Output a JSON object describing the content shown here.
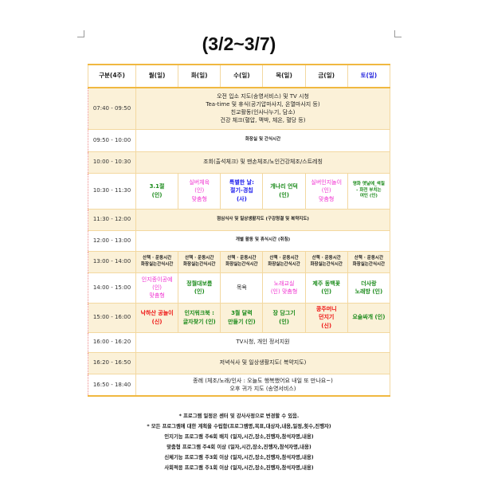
{
  "title": "(3/2~3/7)",
  "header": [
    "구분(4주)",
    "월(일)",
    "화(일)",
    "수(일)",
    "목(일)",
    "금(일)",
    "토(일)"
  ],
  "rows": {
    "r1": {
      "time": "07:40 - 09:50",
      "lines": [
        "오전 입소 지도(송영서비스) 및 TV 시청",
        "Tea-time 및 휴식(공기압마사지, 온열마사지 등)",
        "친교활동(인사나누기, 담소)",
        "건강 체크(혈압, 맥박, 체온, 혈당 등)"
      ]
    },
    "r2": {
      "time": "09:50 - 10:00",
      "text": "화장실 및 간식시간"
    },
    "r3": {
      "time": "10:00 - 10:30",
      "text": "조회(출석체크) 및 맨손체조/노인건강체조/스트레칭"
    },
    "r4": {
      "time": "10:30 - 11:30",
      "cells": [
        [
          "3.1절",
          "(인)"
        ],
        [
          "실버체육",
          "(인)",
          "맞춤형"
        ],
        [
          "특별한 날:",
          "절기-경칩",
          "(사)"
        ],
        [
          "개나리 언덕",
          "(인)"
        ],
        [
          "실버인지놀이",
          "(인)",
          "맞춤형"
        ],
        [
          "명화 옛날에_색칠",
          "- 화전 부치는",
          "여인 (인)"
        ]
      ]
    },
    "r5": {
      "time": "11:30 - 12:00",
      "text": "점심식사 및 일상생활지도 (구강청결 및 복약지도)"
    },
    "r6": {
      "time": "12:00 - 13:00",
      "text": "개별 활동 및 휴식시간 (취침)"
    },
    "r7": {
      "time": "13:00 - 14:00",
      "cell": [
        "산책 · 운동시간",
        "화장실는간식시간"
      ]
    },
    "r8": {
      "time": "14:00 - 15:00",
      "cells": [
        [
          "인지종이공예",
          "(인)",
          "맞춤형"
        ],
        [
          "정월대보름",
          "(인)"
        ],
        [
          "목욕"
        ],
        [
          "노래교실",
          "(인) 맞춤형"
        ],
        [
          "제주 동백꽃",
          "(인)"
        ],
        [
          "더사랑",
          "노래방 (인)"
        ]
      ]
    },
    "r9": {
      "time": "15:00 - 16:00",
      "cells": [
        [
          "낙하산 공놀이",
          "(신)"
        ],
        [
          "인지워크북 :",
          "글자찾기 (인)"
        ],
        [
          "3월 달력",
          "만들기 (인)"
        ],
        [
          "장 담그기",
          "(인)"
        ],
        [
          "콩주머니",
          "던지기",
          "(신)"
        ],
        [
          "요술싸개 (인)"
        ]
      ]
    },
    "r10": {
      "time": "16:00 - 16:20",
      "text": "TV시청, 개인 정서지원"
    },
    "r11": {
      "time": "16:20 - 16:50",
      "text": "저녁식사 및 일상생활지도( 복약지도)"
    },
    "r12": {
      "time": "16:50 - 18:40",
      "lines": [
        "종례 (체조/노래/인사 : 오늘도 행복했어요 내일 또 만나요~)",
        "오후 귀가 지도 (송영서비스)"
      ]
    }
  },
  "notes": [
    "* 프로그램 일정은 센터 및 강사사정으로 변경할 수 있음.",
    "* 모든 프로그램에 대한 계획을 수립함(프로그램명,목표,대상자,내용,일정,횟수,진행자)",
    "인지기능 프로그램 주6회 배치 (일자,시간,장소,진행자,참석자명,내용)",
    "맞춤형 프로그램 주4회 이상 (일자,시간,장소,진행자,참석자명,내용)",
    "신체기능 프로그램 주3회 이상 (일자,시간,장소,진행자,참석자명,내용)",
    "사회적응 프로그램 주1회 이상 (일자,시간,장소,진행자,참석자명,내용)"
  ],
  "colors": {
    "border": "#f0b840",
    "row_alt": "#fbf1d8",
    "cognitive": "#1a8a1a",
    "customized": "#f030d0",
    "social": "#1a1aee",
    "physical": "#ee1111",
    "saturday": "#2222dd"
  }
}
